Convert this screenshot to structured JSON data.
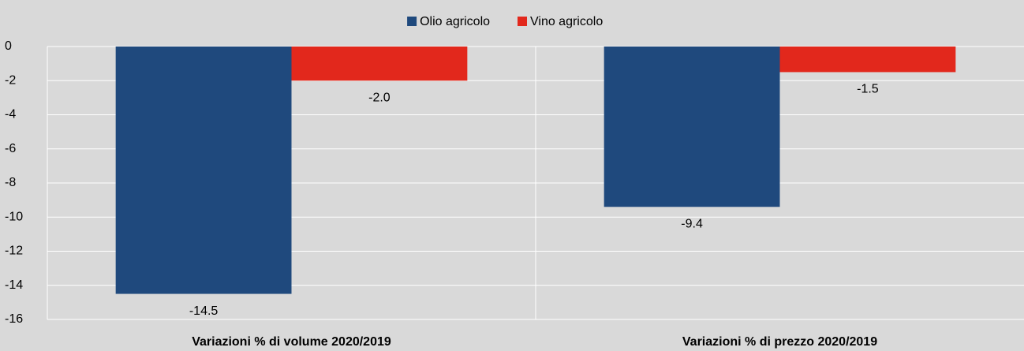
{
  "chart_data": {
    "type": "bar",
    "categories": [
      "Variazioni % di volume 2020/2019",
      "Variazioni % di prezzo 2020/2019"
    ],
    "series": [
      {
        "name": "Olio agricolo",
        "color": "#1f497d",
        "values": [
          -14.5,
          -9.4
        ],
        "value_labels": [
          "-14.5",
          "-9.4"
        ]
      },
      {
        "name": "Vino agricolo",
        "color": "#e2281c",
        "values": [
          -2.0,
          -1.5
        ],
        "value_labels": [
          "-2.0",
          "-1.5"
        ]
      }
    ],
    "ylim": [
      -16,
      0
    ],
    "yticks": [
      0,
      -2,
      -4,
      -6,
      -8,
      -10,
      -12,
      -14,
      -16
    ],
    "grid": true,
    "legend": "top"
  }
}
